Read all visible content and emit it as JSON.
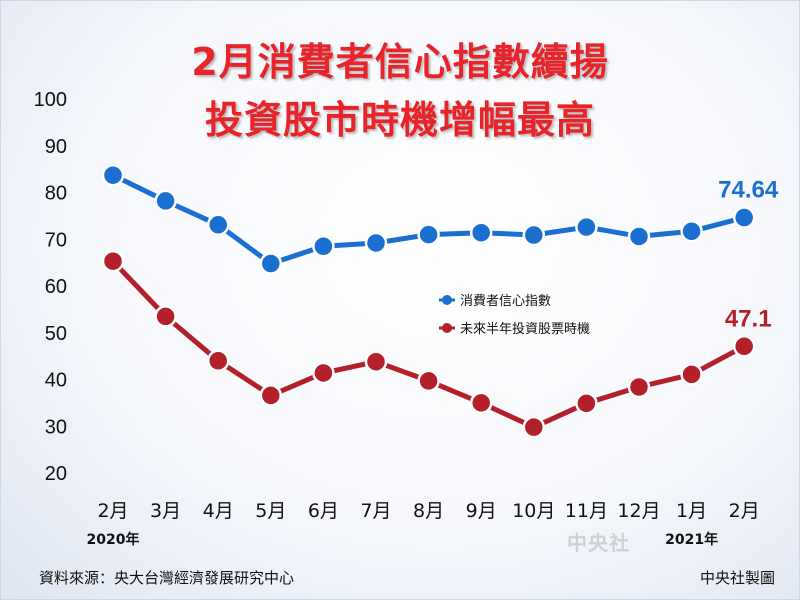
{
  "title_line1": "2月消費者信心指數續揚",
  "title_line2": "投資股市時機增幅最高",
  "footer": {
    "source": "資料來源：央大台灣經濟發展研究中心",
    "credit": "中央社製圖"
  },
  "watermark": "中央社",
  "colors": {
    "title": "#e8232a",
    "series_blue": "#1a6fd1",
    "series_red": "#b3202a"
  },
  "chart_data": {
    "type": "line",
    "categories": [
      "2月",
      "3月",
      "4月",
      "5月",
      "6月",
      "7月",
      "8月",
      "9月",
      "10月",
      "11月",
      "12月",
      "1月",
      "2月"
    ],
    "year_labels": [
      {
        "index": 0,
        "text": "2020年"
      },
      {
        "index": 11,
        "text": "2021年"
      }
    ],
    "ylim": [
      20,
      100
    ],
    "yticks": [
      20,
      30,
      40,
      50,
      60,
      70,
      80,
      90,
      100
    ],
    "grid": false,
    "legend_position": "center-right",
    "series": [
      {
        "name": "消費者信心指數",
        "color": "#1a6fd1",
        "values": [
          83.7,
          78.2,
          73.1,
          64.8,
          68.5,
          69.2,
          71.0,
          71.4,
          70.9,
          72.6,
          70.6,
          71.7,
          74.64
        ],
        "end_label": "74.64"
      },
      {
        "name": "未來半年投資股票時機",
        "color": "#b3202a",
        "values": [
          65.3,
          53.5,
          44.0,
          36.6,
          41.4,
          43.8,
          39.7,
          35.0,
          29.8,
          34.9,
          38.4,
          41.1,
          47.1
        ],
        "end_label": "47.1"
      }
    ]
  }
}
